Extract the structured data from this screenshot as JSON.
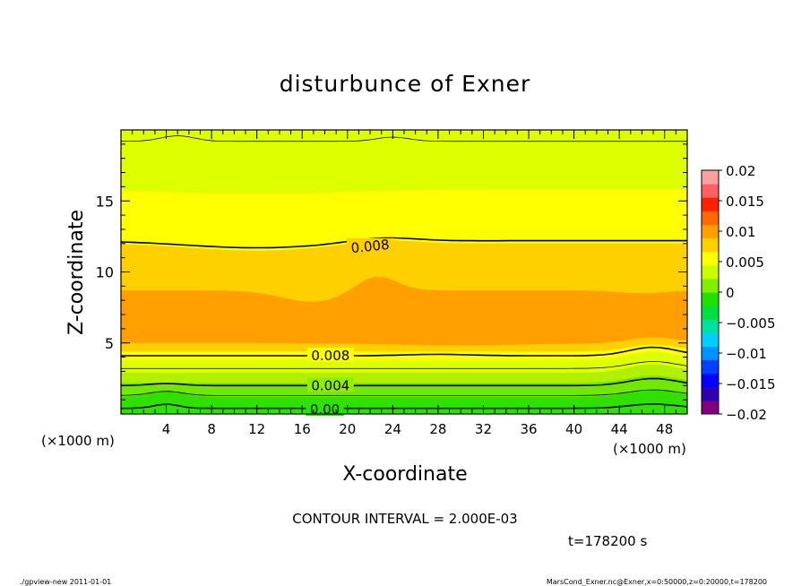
{
  "chart_data": {
    "type": "contour",
    "title": "disturbunce of Exner",
    "xlabel": "X-coordinate",
    "ylabel": "Z-coordinate",
    "x_unit": "(×1000 m)",
    "y_unit": "(×1000 m)",
    "xlim": [
      0,
      50
    ],
    "ylim": [
      0,
      20
    ],
    "x_ticks": [
      4,
      8,
      12,
      16,
      20,
      24,
      28,
      32,
      36,
      40,
      44,
      48
    ],
    "y_ticks": [
      5,
      10,
      15
    ],
    "contour_interval_text": "CONTOUR INTERVAL = 2.000E-03",
    "time_text": "t=178200 s",
    "contour_labels": [
      {
        "text": "0.008",
        "x": 22,
        "z": 11.8
      },
      {
        "text": "0.008",
        "x": 18.5,
        "z": 4.1
      },
      {
        "text": "0.004",
        "x": 18.5,
        "z": 2.0
      },
      {
        "text": "0.00",
        "x": 18,
        "z": 0.3
      }
    ],
    "colorbar": {
      "tick_labels": [
        "0.02",
        "0.015",
        "0.01",
        "0.005",
        "0",
        "−0.005",
        "−0.01",
        "−0.015",
        "−0.02"
      ],
      "range": [
        -0.02,
        0.02
      ],
      "colors": [
        "#7f007f",
        "#3000b0",
        "#0000ff",
        "#0040ff",
        "#0090ff",
        "#00d0ff",
        "#00e0a0",
        "#00e040",
        "#20e000",
        "#80f000",
        "#c8ff00",
        "#ffff00",
        "#ffd000",
        "#ffa000",
        "#ff6a00",
        "#ff2000",
        "#ff6060",
        "#ffa0a0"
      ]
    }
  },
  "footer": {
    "left": "./gpview-new   2011-01-01",
    "right": "MarsCond_Exner.nc@Exner,x=0:50000,z=0:20000,t=178200"
  }
}
